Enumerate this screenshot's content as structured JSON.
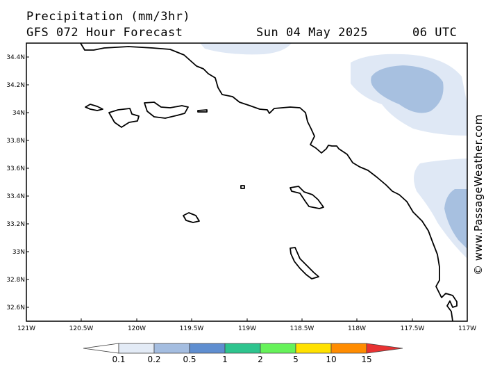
{
  "header": {
    "title": "Precipitation (mm/3hr)",
    "subtitle": "GFS 072 Hour Forecast",
    "date": "Sun 04 May 2025",
    "time": "06 UTC"
  },
  "map": {
    "lat_labels": [
      "34.4N",
      "34.2N",
      "34N",
      "33.8N",
      "33.6N",
      "33.4N",
      "33.2N",
      "33N",
      "32.8N",
      "32.6N"
    ],
    "lon_labels": [
      "121W",
      "120.5W",
      "120W",
      "119.5W",
      "119W",
      "118.5W",
      "118W",
      "117.5W",
      "117W"
    ],
    "extent": {
      "lon_min": -121,
      "lon_max": -117,
      "lat_min": 32.5,
      "lat_max": 34.5
    },
    "colors": {
      "land_line": "#000000",
      "precip_light": "#dfe8f5",
      "precip_mid": "#a7c0e0"
    }
  },
  "colorbar": {
    "labels": [
      "0.1",
      "0.2",
      "0.5",
      "1",
      "2",
      "5",
      "10",
      "15"
    ],
    "colors": [
      "#ffffff",
      "#e3ebf6",
      "#a4bde0",
      "#5f8ed0",
      "#2ec48e",
      "#66f25a",
      "#ffe100",
      "#ff8c00",
      "#e83232"
    ]
  },
  "credit": "© www.PassageWeather.com"
}
